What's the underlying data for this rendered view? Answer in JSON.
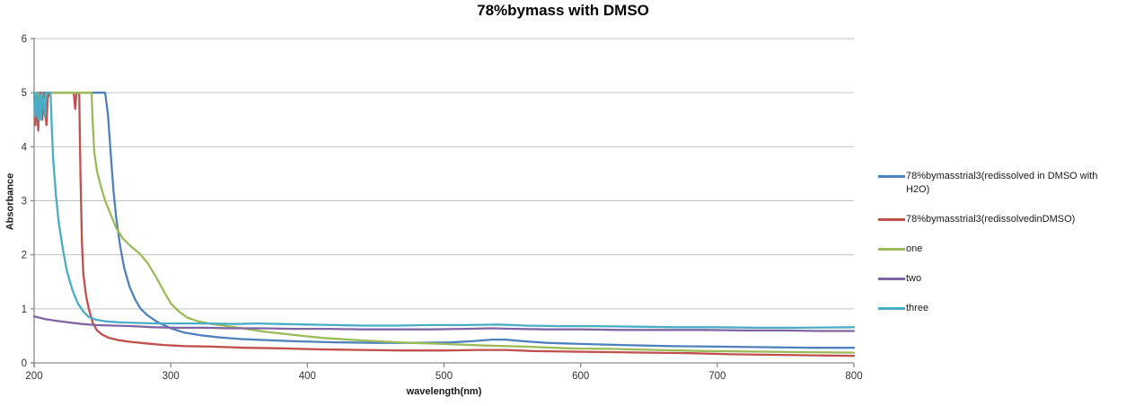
{
  "chart_data": {
    "type": "line",
    "title": "78%bymass with DMSO",
    "xlabel": "wavelength(nm)",
    "ylabel": "Absorbance",
    "xlim": [
      200,
      800
    ],
    "ylim": [
      0,
      6
    ],
    "x_ticks": [
      200,
      300,
      400,
      500,
      600,
      700,
      800
    ],
    "y_ticks": [
      0,
      1,
      2,
      3,
      4,
      5,
      6
    ],
    "grid": true,
    "legend_position": "right",
    "colors": {
      "axis": "#8C8C8C",
      "gridline": "#C3C3C3",
      "tick_text": "#333333",
      "title_text": "#000000"
    },
    "series": [
      {
        "name": "78%bymasstrial3(redissolved in DMSO with H2O)",
        "color": "#4F81BD",
        "points": [
          [
            200,
            5
          ],
          [
            201,
            4.8
          ],
          [
            202,
            5
          ],
          [
            252,
            5
          ],
          [
            254,
            4.6
          ],
          [
            256,
            3.9
          ],
          [
            258,
            3.2
          ],
          [
            260,
            2.7
          ],
          [
            263,
            2.15
          ],
          [
            266,
            1.75
          ],
          [
            270,
            1.4
          ],
          [
            274,
            1.17
          ],
          [
            278,
            1.0
          ],
          [
            283,
            0.88
          ],
          [
            290,
            0.76
          ],
          [
            300,
            0.64
          ],
          [
            310,
            0.56
          ],
          [
            322,
            0.51
          ],
          [
            336,
            0.47
          ],
          [
            352,
            0.44
          ],
          [
            370,
            0.42
          ],
          [
            390,
            0.4
          ],
          [
            420,
            0.38
          ],
          [
            450,
            0.37
          ],
          [
            480,
            0.37
          ],
          [
            505,
            0.38
          ],
          [
            520,
            0.4
          ],
          [
            535,
            0.43
          ],
          [
            545,
            0.43
          ],
          [
            558,
            0.4
          ],
          [
            575,
            0.37
          ],
          [
            600,
            0.35
          ],
          [
            630,
            0.33
          ],
          [
            665,
            0.31
          ],
          [
            700,
            0.3
          ],
          [
            740,
            0.29
          ],
          [
            770,
            0.28
          ],
          [
            800,
            0.28
          ]
        ]
      },
      {
        "name": "78%bymasstrial3(redissolvedinDMSO)",
        "color": "#C0504D",
        "points": [
          [
            200,
            5
          ],
          [
            201,
            4.4
          ],
          [
            202,
            4.9
          ],
          [
            203,
            4.3
          ],
          [
            204,
            5
          ],
          [
            206,
            4.5
          ],
          [
            207,
            5
          ],
          [
            209,
            4.4
          ],
          [
            210,
            4.9
          ],
          [
            211,
            5
          ],
          [
            229,
            5
          ],
          [
            230,
            4.7
          ],
          [
            231,
            5
          ],
          [
            233,
            5
          ],
          [
            234,
            3.4
          ],
          [
            235,
            2.2
          ],
          [
            236,
            1.65
          ],
          [
            238,
            1.25
          ],
          [
            240,
            1.0
          ],
          [
            243,
            0.74
          ],
          [
            246,
            0.6
          ],
          [
            250,
            0.52
          ],
          [
            255,
            0.46
          ],
          [
            262,
            0.42
          ],
          [
            270,
            0.39
          ],
          [
            282,
            0.36
          ],
          [
            295,
            0.33
          ],
          [
            310,
            0.31
          ],
          [
            330,
            0.3
          ],
          [
            355,
            0.28
          ],
          [
            380,
            0.27
          ],
          [
            410,
            0.25
          ],
          [
            440,
            0.24
          ],
          [
            470,
            0.23
          ],
          [
            500,
            0.23
          ],
          [
            525,
            0.24
          ],
          [
            545,
            0.24
          ],
          [
            565,
            0.22
          ],
          [
            590,
            0.21
          ],
          [
            620,
            0.2
          ],
          [
            650,
            0.19
          ],
          [
            680,
            0.18
          ],
          [
            710,
            0.16
          ],
          [
            740,
            0.15
          ],
          [
            770,
            0.14
          ],
          [
            800,
            0.13
          ]
        ]
      },
      {
        "name": "one",
        "color": "#9BBB59",
        "points": [
          [
            200,
            5
          ],
          [
            202,
            4.8
          ],
          [
            203,
            5
          ],
          [
            205,
            4.6
          ],
          [
            206,
            5
          ],
          [
            208,
            4.7
          ],
          [
            209,
            5
          ],
          [
            242,
            5
          ],
          [
            243,
            4.4
          ],
          [
            244,
            3.9
          ],
          [
            246,
            3.55
          ],
          [
            249,
            3.25
          ],
          [
            252,
            3.0
          ],
          [
            256,
            2.75
          ],
          [
            260,
            2.5
          ],
          [
            265,
            2.3
          ],
          [
            271,
            2.15
          ],
          [
            277,
            2.03
          ],
          [
            283,
            1.85
          ],
          [
            289,
            1.6
          ],
          [
            295,
            1.32
          ],
          [
            300,
            1.1
          ],
          [
            306,
            0.95
          ],
          [
            312,
            0.84
          ],
          [
            320,
            0.77
          ],
          [
            330,
            0.72
          ],
          [
            342,
            0.68
          ],
          [
            355,
            0.63
          ],
          [
            368,
            0.58
          ],
          [
            382,
            0.54
          ],
          [
            396,
            0.5
          ],
          [
            412,
            0.46
          ],
          [
            430,
            0.43
          ],
          [
            450,
            0.4
          ],
          [
            475,
            0.37
          ],
          [
            500,
            0.35
          ],
          [
            530,
            0.32
          ],
          [
            560,
            0.3
          ],
          [
            590,
            0.27
          ],
          [
            620,
            0.26
          ],
          [
            655,
            0.24
          ],
          [
            690,
            0.22
          ],
          [
            725,
            0.21
          ],
          [
            760,
            0.2
          ],
          [
            800,
            0.19
          ]
        ]
      },
      {
        "name": "two",
        "color": "#8064A2",
        "points": [
          [
            200,
            0.86
          ],
          [
            208,
            0.81
          ],
          [
            216,
            0.78
          ],
          [
            225,
            0.75
          ],
          [
            235,
            0.72
          ],
          [
            245,
            0.7
          ],
          [
            258,
            0.69
          ],
          [
            272,
            0.68
          ],
          [
            288,
            0.66
          ],
          [
            305,
            0.65
          ],
          [
            325,
            0.65
          ],
          [
            345,
            0.64
          ],
          [
            368,
            0.64
          ],
          [
            390,
            0.63
          ],
          [
            415,
            0.63
          ],
          [
            440,
            0.62
          ],
          [
            465,
            0.62
          ],
          [
            490,
            0.62
          ],
          [
            515,
            0.63
          ],
          [
            535,
            0.64
          ],
          [
            552,
            0.63
          ],
          [
            575,
            0.62
          ],
          [
            600,
            0.62
          ],
          [
            630,
            0.61
          ],
          [
            660,
            0.61
          ],
          [
            690,
            0.61
          ],
          [
            720,
            0.6
          ],
          [
            750,
            0.6
          ],
          [
            775,
            0.59
          ],
          [
            800,
            0.59
          ]
        ]
      },
      {
        "name": "three",
        "color": "#4BACC6",
        "points": [
          [
            200,
            5
          ],
          [
            201,
            4.55
          ],
          [
            202,
            5
          ],
          [
            203,
            4.5
          ],
          [
            204,
            4.95
          ],
          [
            205,
            4.5
          ],
          [
            206,
            5
          ],
          [
            208,
            4.55
          ],
          [
            209,
            5
          ],
          [
            212,
            5
          ],
          [
            213,
            4.3
          ],
          [
            214,
            3.75
          ],
          [
            216,
            3.1
          ],
          [
            218,
            2.6
          ],
          [
            221,
            2.1
          ],
          [
            224,
            1.7
          ],
          [
            228,
            1.35
          ],
          [
            232,
            1.1
          ],
          [
            236,
            0.95
          ],
          [
            240,
            0.85
          ],
          [
            245,
            0.8
          ],
          [
            252,
            0.77
          ],
          [
            262,
            0.75
          ],
          [
            275,
            0.74
          ],
          [
            290,
            0.73
          ],
          [
            310,
            0.73
          ],
          [
            330,
            0.73
          ],
          [
            348,
            0.72
          ],
          [
            363,
            0.73
          ],
          [
            380,
            0.72
          ],
          [
            400,
            0.71
          ],
          [
            420,
            0.7
          ],
          [
            440,
            0.69
          ],
          [
            465,
            0.69
          ],
          [
            490,
            0.7
          ],
          [
            515,
            0.7
          ],
          [
            540,
            0.71
          ],
          [
            560,
            0.69
          ],
          [
            585,
            0.68
          ],
          [
            610,
            0.68
          ],
          [
            640,
            0.67
          ],
          [
            670,
            0.66
          ],
          [
            700,
            0.66
          ],
          [
            730,
            0.65
          ],
          [
            760,
            0.65
          ],
          [
            800,
            0.66
          ]
        ]
      }
    ]
  }
}
